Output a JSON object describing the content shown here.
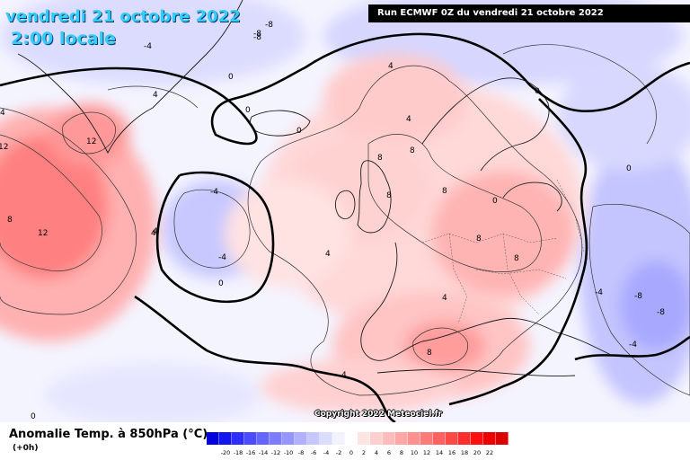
{
  "header": {
    "date": "vendredi 21 octobre 2022",
    "time": "2:00 locale",
    "run": "Run ECMWF 0Z du vendredi 21 octobre 2022"
  },
  "copyright": "Copyright 2022 Meteociel.fr",
  "legend": {
    "title": "Anomalie Temp. à 850hPa (°C)",
    "lead": "(+0h)",
    "ticks": [
      "-20",
      "-18",
      "-16",
      "-14",
      "-12",
      "-10",
      "-8",
      "-6",
      "-4",
      "-2",
      "0",
      "2",
      "4",
      "6",
      "8",
      "10",
      "12",
      "14",
      "16",
      "18",
      "20",
      "22"
    ],
    "colors": [
      "#0000dd",
      "#1414ee",
      "#2d2dff",
      "#4a4aff",
      "#6464ff",
      "#7d7dff",
      "#9696ff",
      "#b0b0ff",
      "#c8c8ff",
      "#dcdcff",
      "#f2f2ff",
      "#ffffff",
      "#ffe4e4",
      "#ffd0d0",
      "#ffbcbc",
      "#ffa6a6",
      "#ff9090",
      "#ff7a7a",
      "#ff6262",
      "#ff4848",
      "#ff2e2e",
      "#ff1010",
      "#ee0000",
      "#dd0000"
    ]
  },
  "map": {
    "contour_labels": [
      "-4",
      "-8",
      "-8",
      "0",
      "12",
      "4",
      "4",
      "4",
      "0",
      "0",
      "12",
      "4",
      "8",
      "-8",
      "8",
      "12",
      "8",
      "4",
      "8",
      "8",
      "-4",
      "0",
      "4",
      "-4",
      "4",
      "8",
      "0",
      "8",
      "-4",
      "-8",
      "-8",
      "-4",
      "0",
      "0",
      "4",
      "4",
      "8",
      "0"
    ],
    "colors": {
      "background": "#f6f6ff",
      "warm_light": "#ffd6d6",
      "warm_mid": "#ffb8b8",
      "warm_strong": "#ff8a8a",
      "warm_peak": "#ff6b6b",
      "cold_light": "#d8d8ff",
      "cold_mid": "#b8b8ff",
      "zero_contour": "#000000",
      "coast": "#222222"
    }
  }
}
